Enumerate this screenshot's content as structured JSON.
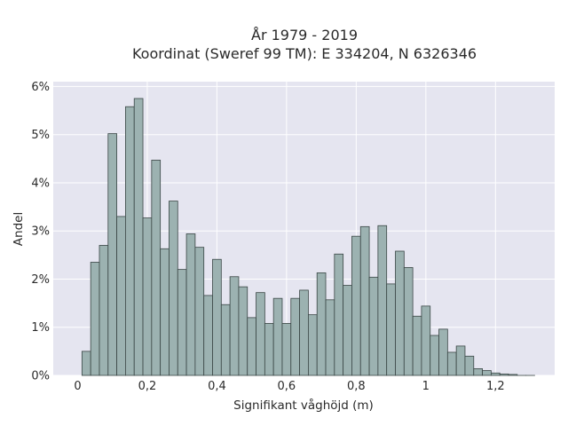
{
  "chart_data": {
    "type": "bar",
    "title_lines": [
      "År 1979 - 2019",
      "Koordinat (Sweref 99 TM): E 334204, N 6326346"
    ],
    "xlabel": "Signifikant våghöjd (m)",
    "ylabel": "Andel",
    "xlim": [
      -0.07,
      1.37
    ],
    "ylim": [
      0,
      6.1
    ],
    "grid": true,
    "bin_width": 0.025,
    "x_ticks": [
      {
        "value": 0,
        "label": "0"
      },
      {
        "value": 0.2,
        "label": "0,2"
      },
      {
        "value": 0.4,
        "label": "0,4"
      },
      {
        "value": 0.6,
        "label": "0,6"
      },
      {
        "value": 0.8,
        "label": "0,8"
      },
      {
        "value": 1.0,
        "label": "1"
      },
      {
        "value": 1.2,
        "label": "1,2"
      }
    ],
    "y_ticks": [
      {
        "value": 0,
        "label": "0%"
      },
      {
        "value": 1,
        "label": "1%"
      },
      {
        "value": 2,
        "label": "2%"
      },
      {
        "value": 3,
        "label": "3%"
      },
      {
        "value": 4,
        "label": "4%"
      },
      {
        "value": 5,
        "label": "5%"
      },
      {
        "value": 6,
        "label": "6%"
      }
    ],
    "series": [
      {
        "x": [
          0.025,
          0.05,
          0.075,
          0.1,
          0.125,
          0.15,
          0.175,
          0.2,
          0.225,
          0.25,
          0.275,
          0.3,
          0.325,
          0.35,
          0.375,
          0.4,
          0.425,
          0.45,
          0.475,
          0.5,
          0.525,
          0.55,
          0.575,
          0.6,
          0.625,
          0.65,
          0.675,
          0.7,
          0.725,
          0.75,
          0.775,
          0.8,
          0.825,
          0.85,
          0.875,
          0.9,
          0.925,
          0.95,
          0.975,
          1.0,
          1.025,
          1.05,
          1.075,
          1.1,
          1.125,
          1.15,
          1.175,
          1.2,
          1.225,
          1.25,
          1.275,
          1.3
        ],
        "values": [
          0.5,
          2.35,
          2.7,
          5.02,
          3.3,
          5.58,
          5.75,
          3.27,
          4.47,
          2.63,
          3.62,
          2.2,
          2.94,
          2.66,
          1.66,
          2.41,
          1.47,
          2.05,
          1.84,
          1.2,
          1.72,
          1.08,
          1.6,
          1.08,
          1.6,
          1.77,
          1.26,
          2.13,
          1.57,
          2.52,
          1.87,
          2.89,
          3.09,
          2.04,
          3.11,
          1.9,
          2.58,
          2.24,
          1.23,
          1.44,
          0.83,
          0.96,
          0.48,
          0.61,
          0.4,
          0.14,
          0.1,
          0.05,
          0.03,
          0.02,
          0.0,
          0.0
        ]
      }
    ],
    "colors": {
      "plot_background": "#e5e5f0",
      "grid": "#ffffff",
      "bar_fill": "#9cb2b1",
      "bar_stroke": "#3a4645"
    }
  }
}
